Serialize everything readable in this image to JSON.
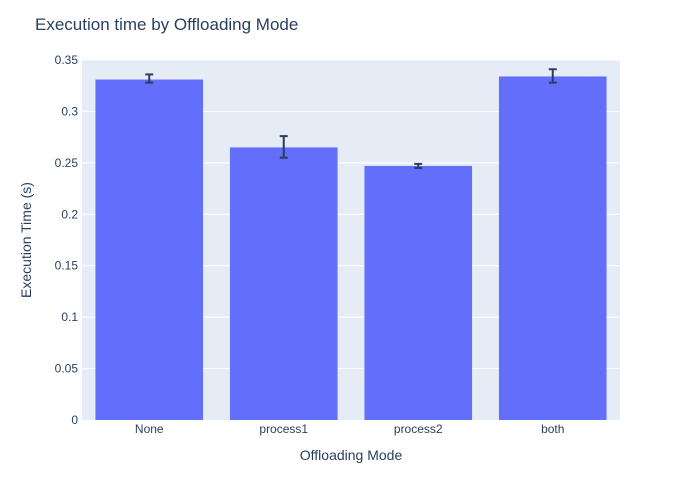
{
  "chart_data": {
    "type": "bar",
    "title": "Execution time by Offloading Mode",
    "xlabel": "Offloading Mode",
    "ylabel": "Execution Time (s)",
    "categories": [
      "None",
      "process1",
      "process2",
      "both"
    ],
    "values": [
      0.331,
      0.265,
      0.247,
      0.334
    ],
    "error_bars": [
      {
        "low": 0.328,
        "high": 0.336
      },
      {
        "low": 0.255,
        "high": 0.276
      },
      {
        "low": 0.245,
        "high": 0.249
      },
      {
        "low": 0.328,
        "high": 0.341
      }
    ],
    "ylim": [
      0,
      0.35
    ],
    "y_ticks": [
      0,
      0.05,
      0.1,
      0.15,
      0.2,
      0.25,
      0.3,
      0.35
    ],
    "y_tick_labels": [
      "0",
      "0.05",
      "0.1",
      "0.15",
      "0.2",
      "0.25",
      "0.3",
      "0.35"
    ],
    "grid": true,
    "colors": {
      "bar": "#636efa",
      "plot_bg": "#e5ecf6",
      "grid": "#ffffff",
      "error_bar": "#2a3f5f",
      "text": "#2a3f5f"
    }
  }
}
